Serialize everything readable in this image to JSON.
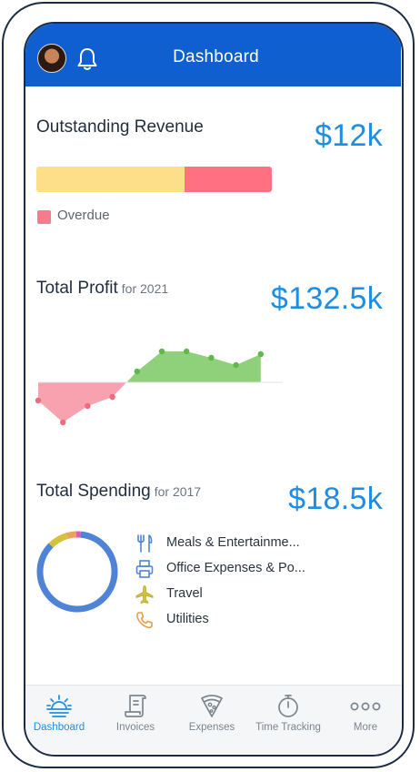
{
  "header": {
    "title": "Dashboard"
  },
  "outstanding": {
    "title": "Outstanding Revenue",
    "value": "$12k",
    "legend_label": "Overdue",
    "overdue_fraction": 0.37,
    "colors": {
      "current": "#fddf8a",
      "overdue": "#ff7182"
    }
  },
  "profit": {
    "title": "Total Profit",
    "period": "for 2021",
    "value": "$132.5k",
    "colors": {
      "positive": "#8fd07a",
      "negative": "#f7a2ae",
      "positive_point": "#5fb84a",
      "negative_point": "#ec6b7c"
    }
  },
  "spending": {
    "title": "Total Spending",
    "period": "for 2017",
    "value": "$18.5k",
    "items": [
      {
        "label": "Meals & Entertainme...",
        "icon": "fork-knife-icon"
      },
      {
        "label": "Office Expenses & Po...",
        "icon": "printer-icon"
      },
      {
        "label": "Travel",
        "icon": "airplane-icon"
      },
      {
        "label": "Utilities",
        "icon": "phone-icon"
      }
    ],
    "colors": [
      "#4f83d6",
      "#d4c23a",
      "#e8a35c",
      "#d960a8"
    ]
  },
  "chart_data": {
    "type": "area",
    "title": "Total Profit",
    "x": [
      1,
      2,
      3,
      4,
      5,
      6,
      7,
      8,
      9,
      10
    ],
    "values": [
      -20,
      -44,
      -26,
      -16,
      12,
      34,
      34,
      27,
      19,
      31
    ],
    "grid": false
  },
  "donut_data": {
    "type": "pie",
    "categories": [
      "Meals & Entertainme...",
      "Office Expenses & Po...",
      "Travel",
      "Utilities"
    ],
    "values": [
      86,
      8,
      4,
      2
    ]
  },
  "tabs": [
    {
      "label": "Dashboard",
      "icon": "sun-horizon-icon",
      "active": true
    },
    {
      "label": "Invoices",
      "icon": "scroll-icon",
      "active": false
    },
    {
      "label": "Expenses",
      "icon": "pizza-icon",
      "active": false
    },
    {
      "label": "Time Tracking",
      "icon": "stopwatch-icon",
      "active": false
    },
    {
      "label": "More",
      "icon": "more-dots-icon",
      "active": false
    }
  ]
}
